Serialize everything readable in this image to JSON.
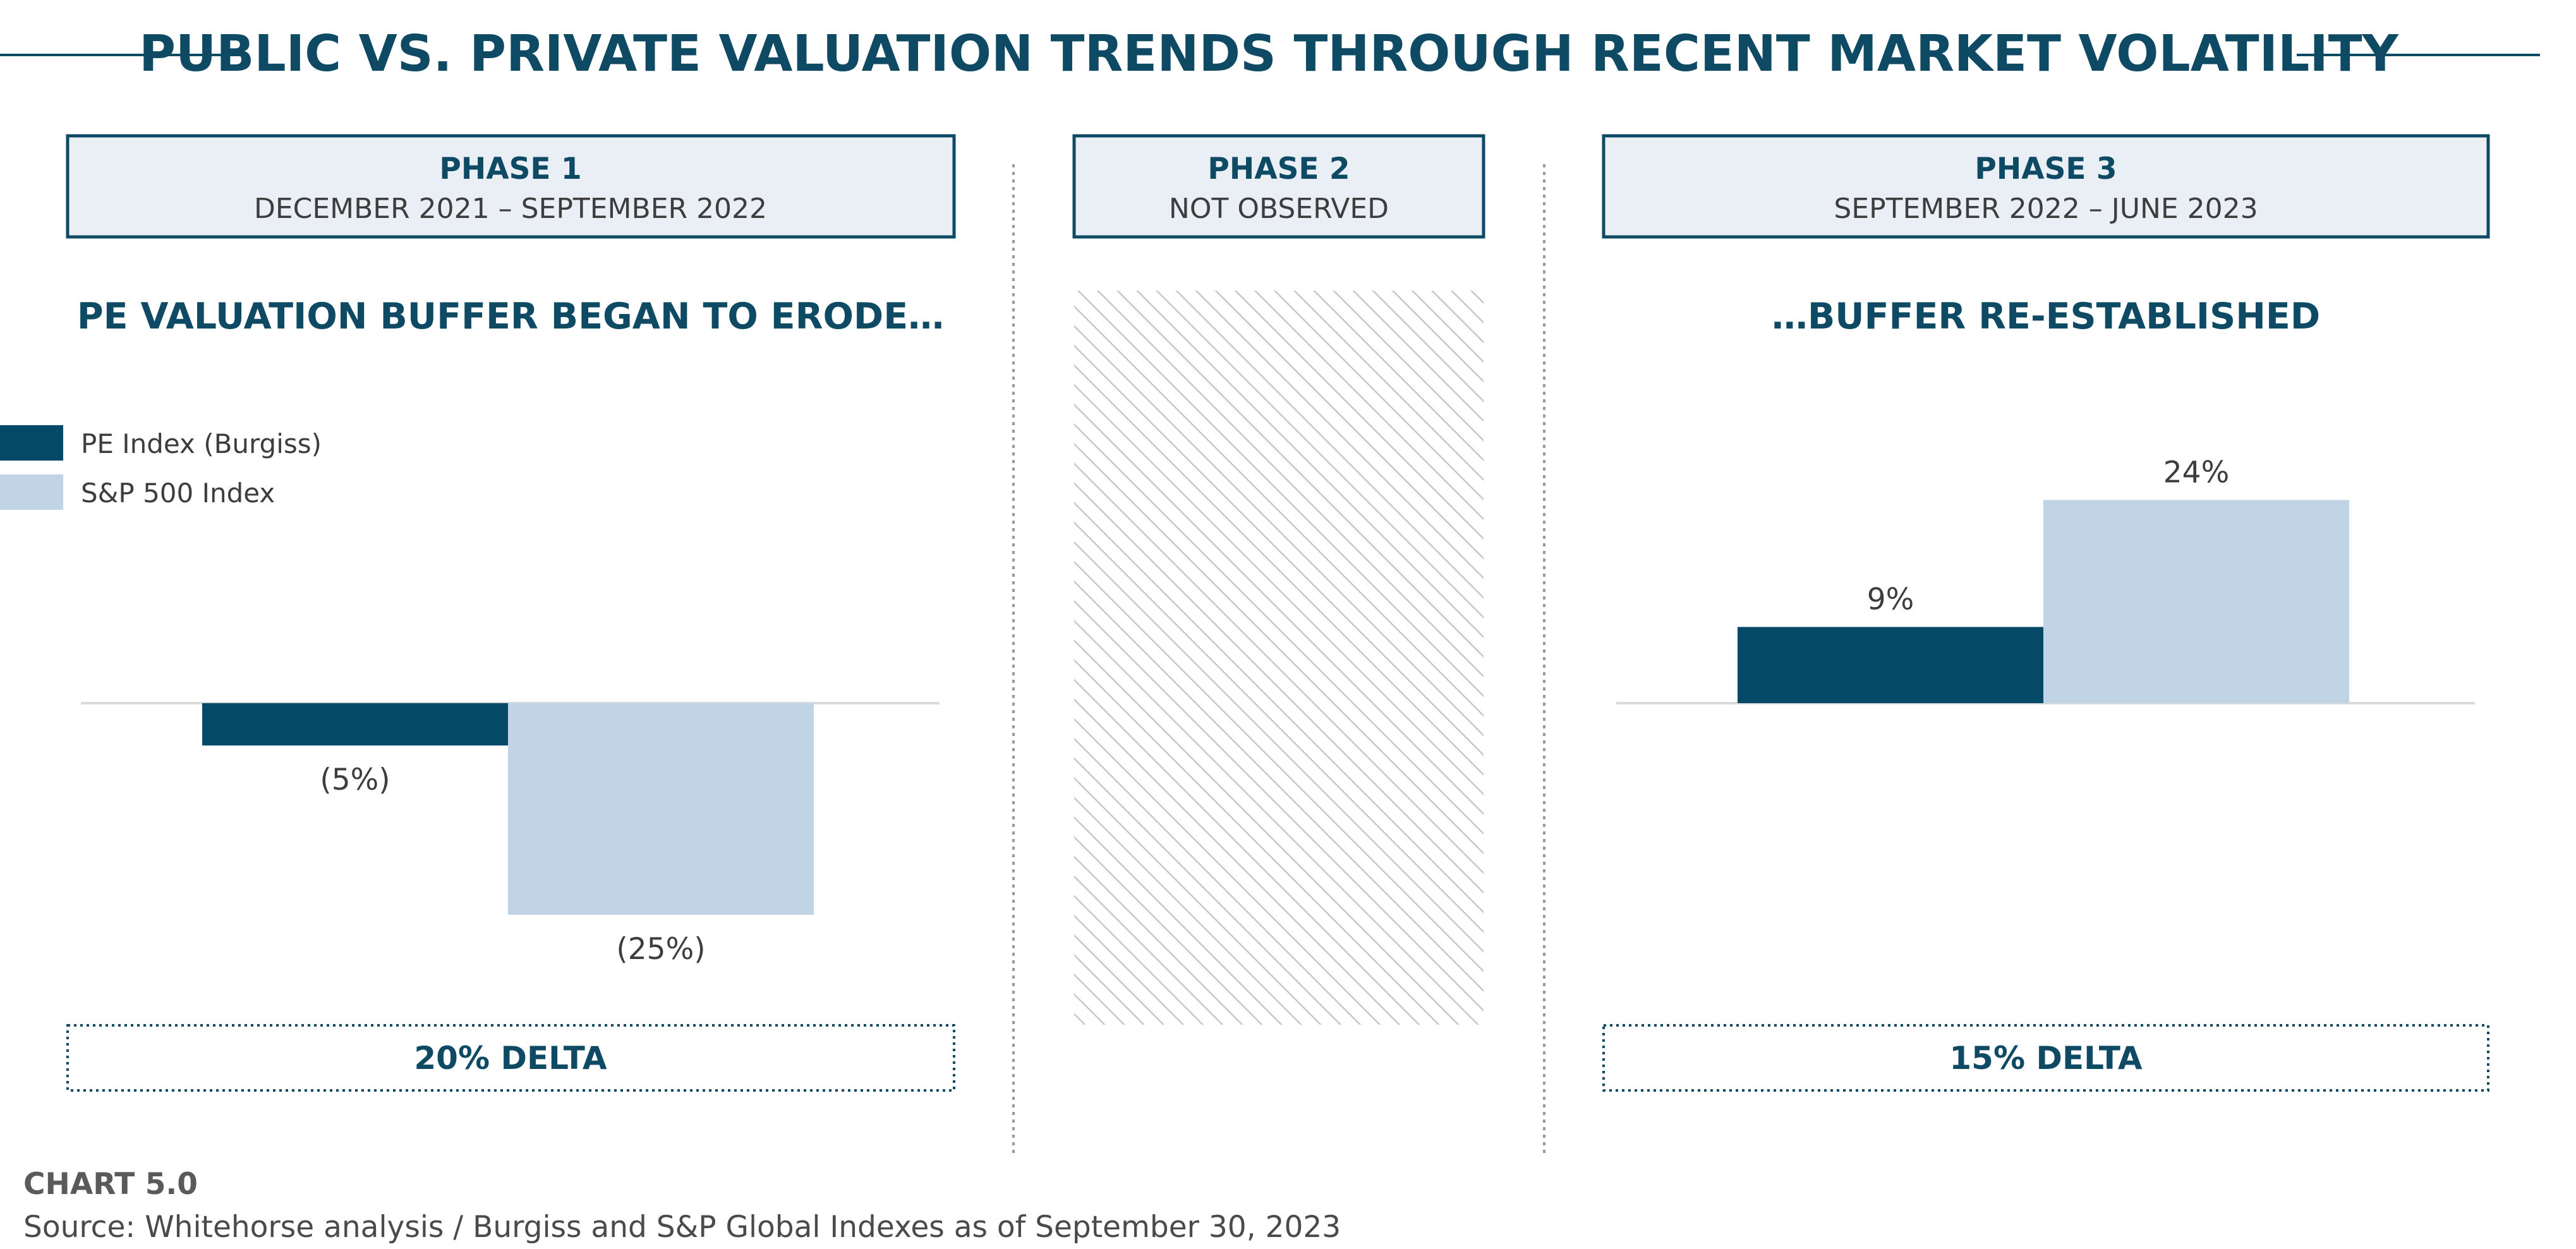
{
  "title": "PUBLIC VS. PRIVATE VALUATION TRENDS THROUGH RECENT MARKET VOLATILITY",
  "colors": {
    "pe": "#044a67",
    "sp": "#c0d4e5",
    "accent": "#0e4a64",
    "header_fill": "#eaeff6",
    "hatch": "#c8c8c8"
  },
  "phases": [
    {
      "title": "PHASE 1",
      "subtitle": "DECEMBER 2021 – SEPTEMBER 2022",
      "headline": "PE VALUATION BUFFER BEGAN TO ERODE…",
      "delta": "20% DELTA"
    },
    {
      "title": "PHASE 2",
      "subtitle": "NOT OBSERVED"
    },
    {
      "title": "PHASE 3",
      "subtitle": "SEPTEMBER 2022 – JUNE 2023",
      "headline": "…BUFFER RE-ESTABLISHED",
      "delta": "15% DELTA"
    }
  ],
  "legend": [
    {
      "label": "PE Index (Burgiss)",
      "color": "#044a67"
    },
    {
      "label": "S&P 500 Index",
      "color": "#c0d4e5"
    }
  ],
  "chart_data": [
    {
      "type": "bar",
      "categories": [
        "PE Index (Burgiss)",
        "S&P 500 Index"
      ],
      "values": [
        -5,
        -25
      ],
      "value_labels": [
        "(5%)",
        "(25%)"
      ],
      "unit": "%"
    },
    {
      "type": "bar",
      "categories": [
        "PE Index (Burgiss)",
        "S&P 500 Index"
      ],
      "values": [
        9,
        24
      ],
      "value_labels": [
        "9%",
        "24%"
      ],
      "unit": "%"
    }
  ],
  "footer": {
    "chart_number": "CHART 5.0",
    "source": "Source: Whitehorse analysis / Burgiss and S&P Global Indexes as of September 30, 2023"
  }
}
